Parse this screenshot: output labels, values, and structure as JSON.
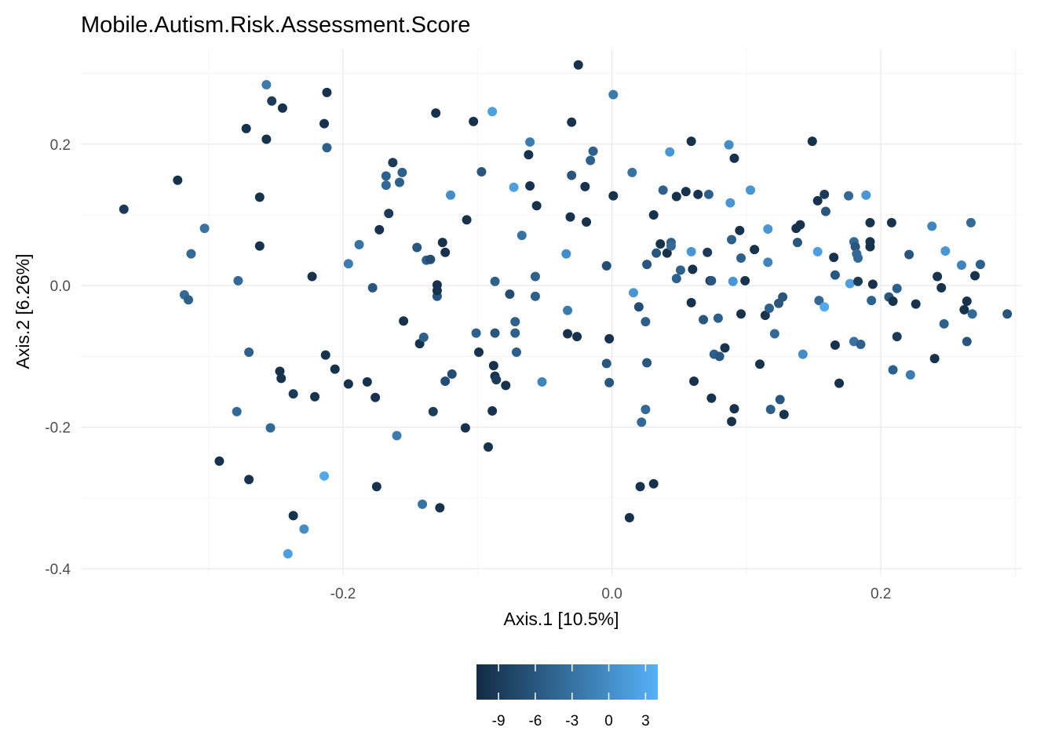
{
  "chart_data": {
    "type": "scatter",
    "title": "Mobile.Autism.Risk.Assessment.Score",
    "xlabel": "Axis.1 [10.5%]",
    "ylabel": "Axis.2 [6.26%]",
    "xlim": [
      -0.395,
      0.305
    ],
    "ylim": [
      -0.41,
      0.335
    ],
    "x_ticks": [
      -0.2,
      0.0,
      0.2
    ],
    "x_tick_labels": [
      "-0.2",
      "0.0",
      "0.2"
    ],
    "y_ticks": [
      -0.4,
      -0.2,
      0.0,
      0.2
    ],
    "y_tick_labels": [
      "-0.4",
      "-0.2",
      "0.0",
      "0.2"
    ],
    "grid": true,
    "legend": {
      "position": "bottom",
      "type": "colorbar",
      "range": [
        -10.8,
        4.0
      ],
      "ticks": [
        -9,
        -6,
        -3,
        0,
        3
      ],
      "tick_labels": [
        "-9",
        "-6",
        "-3",
        "0",
        "3"
      ],
      "color_low": "#132B43",
      "color_high": "#56B1F7"
    },
    "colors": {
      "low": "#132B43",
      "high": "#56B1F7"
    },
    "points": [
      [
        -0.363,
        0.108,
        -9
      ],
      [
        -0.323,
        0.149,
        -10
      ],
      [
        -0.303,
        0.081,
        -3
      ],
      [
        -0.313,
        0.045,
        -4
      ],
      [
        -0.318,
        -0.013,
        -4
      ],
      [
        -0.315,
        -0.02,
        -5
      ],
      [
        -0.292,
        -0.248,
        -10
      ],
      [
        -0.279,
        -0.178,
        -4
      ],
      [
        -0.278,
        0.007,
        -4
      ],
      [
        -0.272,
        0.222,
        -10
      ],
      [
        -0.27,
        -0.094,
        -5
      ],
      [
        -0.27,
        -0.274,
        -10
      ],
      [
        -0.257,
        0.284,
        -2
      ],
      [
        -0.257,
        0.207,
        -10
      ],
      [
        -0.253,
        0.261,
        -9
      ],
      [
        -0.254,
        -0.201,
        -4
      ],
      [
        -0.245,
        0.251,
        -10
      ],
      [
        -0.262,
        0.125,
        -10
      ],
      [
        -0.262,
        0.056,
        -10
      ],
      [
        -0.247,
        -0.121,
        -10
      ],
      [
        -0.246,
        -0.131,
        -10
      ],
      [
        -0.237,
        -0.153,
        -9
      ],
      [
        -0.237,
        -0.325,
        -10
      ],
      [
        -0.229,
        -0.344,
        0
      ],
      [
        -0.241,
        -0.379,
        2
      ],
      [
        -0.223,
        0.013,
        -10
      ],
      [
        -0.221,
        -0.157,
        -10
      ],
      [
        -0.212,
        0.273,
        -10
      ],
      [
        -0.214,
        0.229,
        -10
      ],
      [
        -0.212,
        0.195,
        -5
      ],
      [
        -0.213,
        -0.098,
        -10
      ],
      [
        -0.214,
        -0.269,
        3
      ],
      [
        -0.206,
        -0.118,
        -10
      ],
      [
        -0.196,
        0.031,
        -2
      ],
      [
        -0.196,
        -0.139,
        -10
      ],
      [
        -0.188,
        0.058,
        -3
      ],
      [
        -0.182,
        -0.136,
        -10
      ],
      [
        -0.178,
        -0.003,
        -6
      ],
      [
        -0.176,
        -0.158,
        -10
      ],
      [
        -0.175,
        -0.284,
        -10
      ],
      [
        -0.173,
        0.079,
        -10
      ],
      [
        -0.168,
        0.155,
        -5
      ],
      [
        -0.168,
        0.142,
        -4
      ],
      [
        -0.166,
        0.102,
        -9
      ],
      [
        -0.163,
        0.174,
        -9
      ],
      [
        -0.16,
        -0.212,
        -2
      ],
      [
        -0.158,
        0.146,
        -5
      ],
      [
        -0.156,
        0.16,
        -5
      ],
      [
        -0.155,
        -0.05,
        -10
      ],
      [
        -0.145,
        0.054,
        -6
      ],
      [
        -0.143,
        -0.082,
        -10
      ],
      [
        -0.14,
        -0.073,
        -5
      ],
      [
        -0.141,
        -0.309,
        -3
      ],
      [
        -0.138,
        0.036,
        -5
      ],
      [
        -0.135,
        0.037,
        -7
      ],
      [
        -0.133,
        -0.178,
        -9
      ],
      [
        -0.131,
        0.244,
        -10
      ],
      [
        -0.13,
        0.001,
        -10
      ],
      [
        -0.13,
        -0.015,
        -6
      ],
      [
        -0.13,
        -0.007,
        -10
      ],
      [
        -0.128,
        -0.314,
        -10
      ],
      [
        -0.126,
        0.061,
        -10
      ],
      [
        -0.124,
        0.047,
        -10
      ],
      [
        -0.124,
        -0.135,
        -7
      ],
      [
        -0.12,
        0.128,
        0
      ],
      [
        -0.119,
        -0.125,
        -7
      ],
      [
        -0.108,
        0.093,
        -10
      ],
      [
        -0.109,
        -0.201,
        -10
      ],
      [
        -0.103,
        0.232,
        -10
      ],
      [
        -0.101,
        -0.067,
        -5
      ],
      [
        -0.099,
        -0.094,
        -10
      ],
      [
        -0.097,
        0.161,
        -6
      ],
      [
        -0.092,
        -0.228,
        -10
      ],
      [
        -0.089,
        0.246,
        2
      ],
      [
        -0.089,
        -0.177,
        -10
      ],
      [
        -0.088,
        -0.113,
        -10
      ],
      [
        -0.087,
        0.006,
        -5
      ],
      [
        -0.087,
        -0.067,
        -6
      ],
      [
        -0.087,
        -0.128,
        -10
      ],
      [
        -0.086,
        -0.133,
        -9
      ],
      [
        -0.079,
        -0.141,
        -10
      ],
      [
        -0.076,
        -0.012,
        -7
      ],
      [
        -0.073,
        0.139,
        2
      ],
      [
        -0.072,
        -0.051,
        -5
      ],
      [
        -0.072,
        -0.067,
        -5
      ],
      [
        -0.071,
        -0.094,
        -5
      ],
      [
        -0.067,
        0.071,
        -3
      ],
      [
        -0.062,
        0.185,
        -10
      ],
      [
        -0.061,
        0.203,
        -2
      ],
      [
        -0.061,
        0.141,
        -10
      ],
      [
        -0.057,
        0.013,
        -5
      ],
      [
        -0.057,
        -0.015,
        -5
      ],
      [
        -0.056,
        0.113,
        -10
      ],
      [
        -0.052,
        -0.136,
        -1
      ],
      [
        -0.034,
        0.045,
        0
      ],
      [
        -0.033,
        -0.035,
        -2
      ],
      [
        -0.033,
        -0.068,
        -10
      ],
      [
        -0.031,
        0.097,
        -10
      ],
      [
        -0.03,
        0.231,
        -10
      ],
      [
        -0.03,
        0.156,
        -6
      ],
      [
        -0.026,
        -0.072,
        -10
      ],
      [
        -0.025,
        0.312,
        -10
      ],
      [
        -0.02,
        0.14,
        -10
      ],
      [
        -0.019,
        0.09,
        -10
      ],
      [
        -0.016,
        0.177,
        -5
      ],
      [
        -0.014,
        0.19,
        -5
      ],
      [
        -0.004,
        0.028,
        -7
      ],
      [
        -0.004,
        -0.11,
        -6
      ],
      [
        -0.002,
        -0.137,
        -6
      ],
      [
        -0.002,
        -0.075,
        -10
      ],
      [
        0.001,
        0.127,
        -10
      ],
      [
        0.001,
        0.27,
        -2
      ],
      [
        0.013,
        -0.328,
        -10
      ],
      [
        0.015,
        0.16,
        -3
      ],
      [
        0.016,
        -0.01,
        1
      ],
      [
        0.02,
        -0.03,
        -7
      ],
      [
        0.021,
        -0.284,
        -10
      ],
      [
        0.022,
        -0.193,
        -4
      ],
      [
        0.025,
        -0.051,
        -5
      ],
      [
        0.025,
        -0.175,
        -4
      ],
      [
        0.026,
        0.03,
        -6
      ],
      [
        0.026,
        -0.109,
        -6
      ],
      [
        0.031,
        0.1,
        -10
      ],
      [
        0.031,
        -0.28,
        -10
      ],
      [
        0.033,
        0.046,
        -6
      ],
      [
        0.036,
        0.059,
        -10
      ],
      [
        0.038,
        0.135,
        -5
      ],
      [
        0.041,
        0.046,
        -10
      ],
      [
        0.043,
        0.189,
        1
      ],
      [
        0.044,
        0.061,
        -5
      ],
      [
        0.044,
        0.056,
        -4
      ],
      [
        0.048,
        0.01,
        -5
      ],
      [
        0.048,
        0.126,
        -10
      ],
      [
        0.051,
        0.022,
        -5
      ],
      [
        0.055,
        0.133,
        -10
      ],
      [
        0.059,
        0.204,
        -10
      ],
      [
        0.059,
        0.048,
        1
      ],
      [
        0.059,
        -0.024,
        -10
      ],
      [
        0.06,
        0.023,
        -10
      ],
      [
        0.061,
        -0.135,
        -10
      ],
      [
        0.064,
        0.129,
        -10
      ],
      [
        0.068,
        -0.048,
        -6
      ],
      [
        0.071,
        0.047,
        -9
      ],
      [
        0.072,
        0.129,
        -5
      ],
      [
        0.073,
        0.007,
        -10
      ],
      [
        0.074,
        0.007,
        -6
      ],
      [
        0.074,
        -0.159,
        -10
      ],
      [
        0.076,
        -0.097,
        -5
      ],
      [
        0.079,
        -0.046,
        -5
      ],
      [
        0.08,
        -0.1,
        -6
      ],
      [
        0.084,
        -0.088,
        -10
      ],
      [
        0.087,
        0.199,
        0
      ],
      [
        0.088,
        0.117,
        1
      ],
      [
        0.089,
        -0.192,
        -10
      ],
      [
        0.089,
        0.065,
        -5
      ],
      [
        0.09,
        0.006,
        1
      ],
      [
        0.091,
        0.18,
        -10
      ],
      [
        0.091,
        -0.174,
        -10
      ],
      [
        0.095,
        0.078,
        -10
      ],
      [
        0.096,
        0.039,
        -5
      ],
      [
        0.096,
        -0.04,
        -10
      ],
      [
        0.099,
        0.007,
        -10
      ],
      [
        0.103,
        0.135,
        1
      ],
      [
        0.106,
        0.051,
        -10
      ],
      [
        0.11,
        -0.111,
        -10
      ],
      [
        0.114,
        -0.042,
        -10
      ],
      [
        0.116,
        0.08,
        1
      ],
      [
        0.116,
        0.033,
        -1
      ],
      [
        0.117,
        -0.032,
        -5
      ],
      [
        0.118,
        -0.175,
        -5
      ],
      [
        0.121,
        -0.068,
        -4
      ],
      [
        0.124,
        -0.025,
        -6
      ],
      [
        0.125,
        -0.161,
        -6
      ],
      [
        0.127,
        -0.016,
        -6
      ],
      [
        0.128,
        -0.182,
        -10
      ],
      [
        0.137,
        0.081,
        -10
      ],
      [
        0.138,
        0.061,
        -6
      ],
      [
        0.14,
        0.086,
        -10
      ],
      [
        0.142,
        -0.097,
        0
      ],
      [
        0.149,
        0.204,
        -10
      ],
      [
        0.153,
        0.12,
        -10
      ],
      [
        0.153,
        0.048,
        2
      ],
      [
        0.154,
        -0.021,
        -4
      ],
      [
        0.158,
        -0.03,
        3
      ],
      [
        0.158,
        0.129,
        -9
      ],
      [
        0.159,
        0.105,
        -6
      ],
      [
        0.165,
        0.04,
        -10
      ],
      [
        0.166,
        -0.084,
        -10
      ],
      [
        0.166,
        0.015,
        -6
      ],
      [
        0.169,
        -0.138,
        -10
      ],
      [
        0.176,
        0.127,
        -4
      ],
      [
        0.177,
        0.003,
        2
      ],
      [
        0.18,
        0.062,
        -4
      ],
      [
        0.18,
        -0.079,
        -3
      ],
      [
        0.181,
        0.055,
        -6
      ],
      [
        0.182,
        0.045,
        -4
      ],
      [
        0.183,
        0.006,
        -9
      ],
      [
        0.183,
        0.039,
        -4
      ],
      [
        0.185,
        -0.083,
        -5
      ],
      [
        0.189,
        0.128,
        1
      ],
      [
        0.192,
        0.089,
        -10
      ],
      [
        0.192,
        0.062,
        -10
      ],
      [
        0.192,
        0.055,
        -10
      ],
      [
        0.193,
        -0.021,
        -5
      ],
      [
        0.194,
        0.002,
        -10
      ],
      [
        0.206,
        -0.016,
        -6
      ],
      [
        0.208,
        0.089,
        -10
      ],
      [
        0.209,
        -0.022,
        -10
      ],
      [
        0.209,
        -0.119,
        -5
      ],
      [
        0.212,
        -0.072,
        -9
      ],
      [
        0.212,
        -0.004,
        -5
      ],
      [
        0.221,
        0.044,
        -6
      ],
      [
        0.222,
        -0.126,
        -2
      ],
      [
        0.226,
        -0.026,
        -10
      ],
      [
        0.238,
        0.084,
        -1
      ],
      [
        0.24,
        -0.103,
        -10
      ],
      [
        0.242,
        0.013,
        -10
      ],
      [
        0.245,
        -0.003,
        -10
      ],
      [
        0.247,
        -0.054,
        -5
      ],
      [
        0.248,
        0.049,
        1
      ],
      [
        0.26,
        0.029,
        -1
      ],
      [
        0.262,
        -0.034,
        -10
      ],
      [
        0.264,
        -0.022,
        -10
      ],
      [
        0.264,
        -0.079,
        -6
      ],
      [
        0.267,
        0.089,
        -4
      ],
      [
        0.268,
        -0.04,
        -4
      ],
      [
        0.27,
        0.014,
        -10
      ],
      [
        0.274,
        0.03,
        -5
      ],
      [
        0.294,
        -0.04,
        -6
      ]
    ]
  }
}
